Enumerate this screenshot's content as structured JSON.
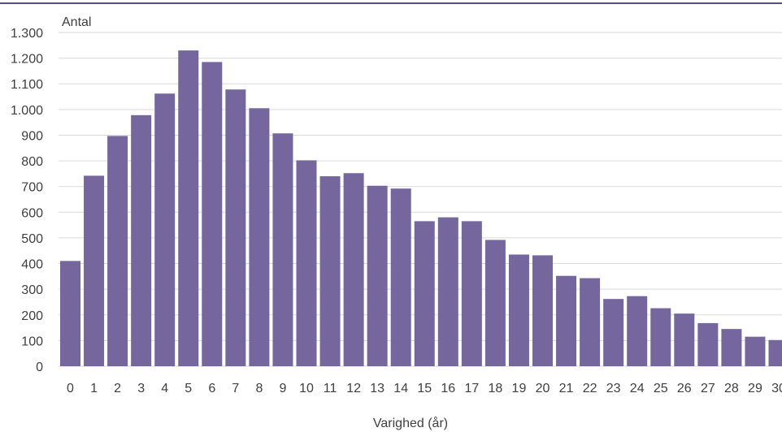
{
  "chart_data": {
    "type": "bar",
    "title": "",
    "ylabel": "Antal",
    "xlabel": "Varighed (år)",
    "categories": [
      "0",
      "1",
      "2",
      "3",
      "4",
      "5",
      "6",
      "7",
      "8",
      "9",
      "10",
      "11",
      "12",
      "13",
      "14",
      "15",
      "16",
      "17",
      "18",
      "19",
      "20",
      "21",
      "22",
      "23",
      "24",
      "25",
      "26",
      "27",
      "28",
      "29",
      "30"
    ],
    "values": [
      410,
      742,
      897,
      978,
      1062,
      1230,
      1185,
      1078,
      1005,
      907,
      802,
      740,
      752,
      703,
      692,
      565,
      580,
      565,
      492,
      435,
      432,
      352,
      343,
      262,
      273,
      226,
      205,
      168,
      145,
      115,
      102
    ],
    "ylim": [
      0,
      1300
    ],
    "yticks": [
      0,
      100,
      200,
      300,
      400,
      500,
      600,
      700,
      800,
      900,
      1000,
      1100,
      1200,
      1300
    ],
    "ytick_labels": [
      "0",
      "100",
      "200",
      "300",
      "400",
      "500",
      "600",
      "700",
      "800",
      "900",
      "1.000",
      "1.100",
      "1.200",
      "1.300"
    ],
    "grid": true,
    "legend": "none",
    "colors": {
      "bar": "#75679e",
      "grid": "#d9d9d9",
      "text": "#404040",
      "rule": "#5b4b86"
    }
  }
}
